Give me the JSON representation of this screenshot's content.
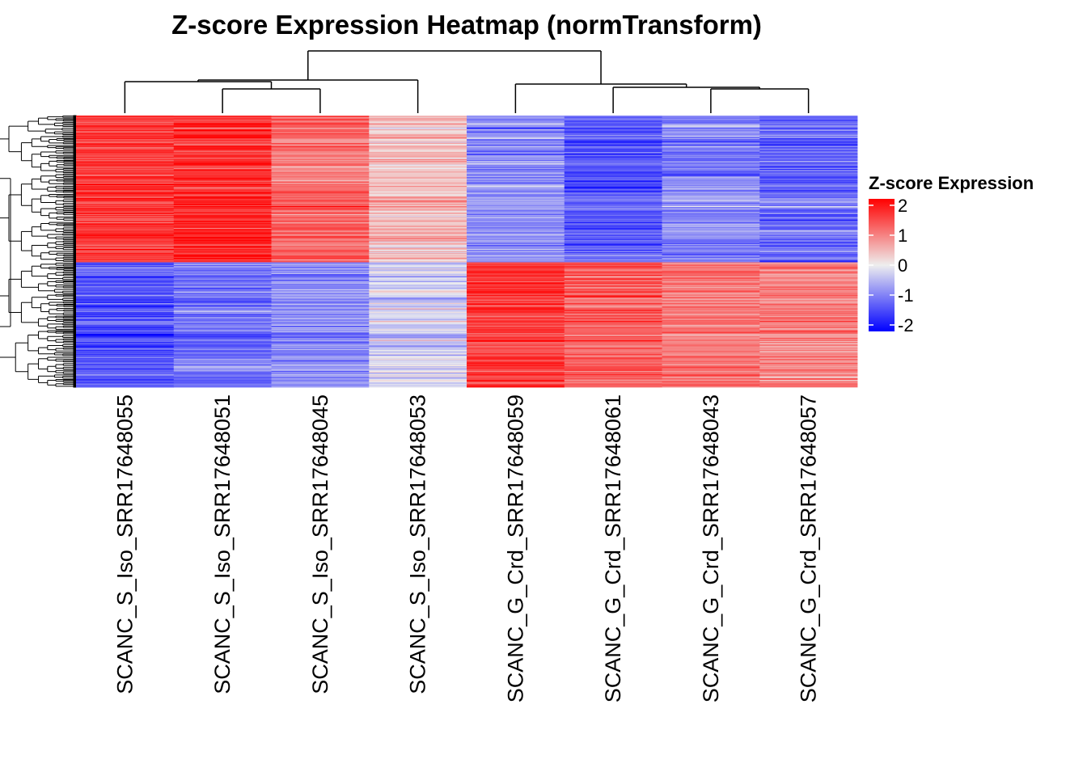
{
  "chart_data": {
    "type": "heatmap",
    "title": "Z-score Expression Heatmap (normTransform)",
    "samples": [
      "SCANC_S_Iso_SRR17648055",
      "SCANC_S_Iso_SRR17648051",
      "SCANC_S_Iso_SRR17648045",
      "SCANC_S_Iso_SRR17648053",
      "SCANC_G_Crd_SRR17648059",
      "SCANC_G_Crd_SRR17648061",
      "SCANC_G_Crd_SRR17648043",
      "SCANC_G_Crd_SRR17648057"
    ],
    "row_clusters": [
      {
        "row_fraction": 0.54,
        "mean_zscore": [
          1.5,
          1.6,
          1.1,
          0.4,
          -0.8,
          -1.2,
          -0.9,
          -1.1
        ]
      },
      {
        "row_fraction": 0.46,
        "mean_zscore": [
          -1.3,
          -1.0,
          -0.8,
          -0.3,
          1.5,
          1.2,
          1.0,
          0.9
        ]
      }
    ],
    "color_scale": {
      "legend_title": "Z-score Expression",
      "min": -2,
      "max": 2,
      "ticks": [
        2,
        1,
        0,
        -1,
        -2
      ],
      "colors": {
        "low": "#0000ff",
        "mid": "#eeeeee",
        "high": "#ff0000"
      }
    },
    "column_dendrogram": "((SCANC_S_Iso_SRR17648055,(SCANC_S_Iso_SRR17648051,SCANC_S_Iso_SRR17648045)),SCANC_S_Iso_SRR17648053),(SCANC_G_Crd_SRR17648059,(SCANC_G_Crd_SRR17648061,(SCANC_G_Crd_SRR17648043,SCANC_G_Crd_SRR17648057)))",
    "row_dendrogram": true
  }
}
